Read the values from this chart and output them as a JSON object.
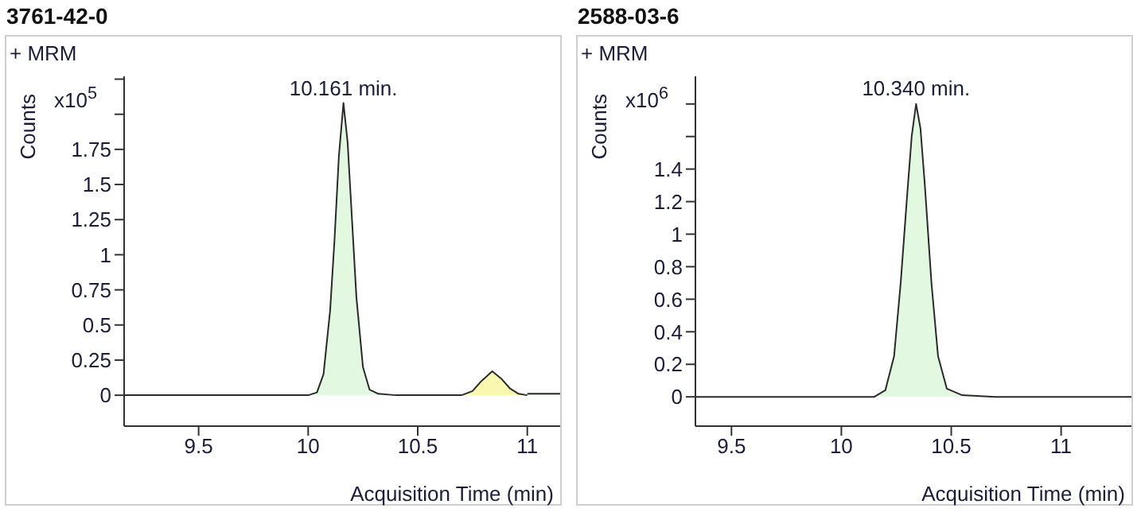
{
  "chart_data": [
    {
      "type": "area",
      "title": "3761-42-0",
      "xlabel": "Acquisition Time (min)",
      "ylabel": "Counts",
      "annotations": [
        "+ MRM",
        "x10$^{5}$",
        {
          "text": "10.161 min.",
          "x": 10.161,
          "y": 2.08
        }
      ],
      "series": [
        {
          "color": "#e2f8e0",
          "x": [
            9.16,
            9.5,
            9.9,
            10.0,
            10.04,
            10.07,
            10.1,
            10.12,
            10.14,
            10.161,
            10.18,
            10.2,
            10.22,
            10.25,
            10.28,
            10.32,
            10.4,
            10.6,
            10.7,
            11.0,
            11.15
          ],
          "values": [
            0,
            0,
            0,
            0,
            0.02,
            0.15,
            0.6,
            1.1,
            1.7,
            2.08,
            1.8,
            1.25,
            0.7,
            0.2,
            0.04,
            0.01,
            0,
            0,
            0,
            0.01,
            0.01
          ]
        },
        {
          "color": "#f9f7b0",
          "x": [
            10.7,
            10.75,
            10.79,
            10.84,
            10.88,
            10.92,
            10.96,
            11.0
          ],
          "values": [
            0,
            0.03,
            0.1,
            0.17,
            0.12,
            0.05,
            0.01,
            0
          ]
        }
      ],
      "xlim": [
        9.16,
        11.15
      ],
      "xticks": [
        9.5,
        10,
        10.5,
        11
      ],
      "ylim": [
        -0.22,
        2.27
      ],
      "yticks": [
        0,
        0.25,
        0.5,
        0.75,
        1,
        1.25,
        1.5,
        1.75,
        {
          "value": 2,
          "label": null
        },
        {
          "value": 2.25,
          "label": null
        }
      ],
      "grid": false,
      "legend": false
    },
    {
      "type": "area",
      "title": "2588-03-6",
      "xlabel": "Acquisition Time (min)",
      "ylabel": "Counts",
      "annotations": [
        "+ MRM",
        "x10$^{6}$",
        {
          "text": "10.340 min.",
          "x": 10.34,
          "y": 1.8
        }
      ],
      "series": [
        {
          "color": "#e2f8e0",
          "x": [
            9.336,
            9.8,
            10.1,
            10.15,
            10.2,
            10.24,
            10.27,
            10.3,
            10.32,
            10.34,
            10.36,
            10.38,
            10.41,
            10.44,
            10.48,
            10.55,
            10.7,
            11.0,
            11.32
          ],
          "values": [
            0,
            0,
            0,
            0,
            0.04,
            0.25,
            0.7,
            1.25,
            1.6,
            1.8,
            1.65,
            1.3,
            0.7,
            0.25,
            0.05,
            0.01,
            0,
            0,
            0
          ]
        }
      ],
      "xlim": [
        9.336,
        11.32
      ],
      "xticks": [
        9.5,
        10,
        10.5,
        11
      ],
      "ylim": [
        -0.18,
        1.97
      ],
      "yticks": [
        0,
        0.2,
        0.4,
        0.6,
        0.8,
        1,
        1.2,
        1.4,
        {
          "value": 1.6,
          "label": null
        },
        {
          "value": 1.8,
          "label": null
        }
      ],
      "grid": false,
      "legend": false
    }
  ]
}
